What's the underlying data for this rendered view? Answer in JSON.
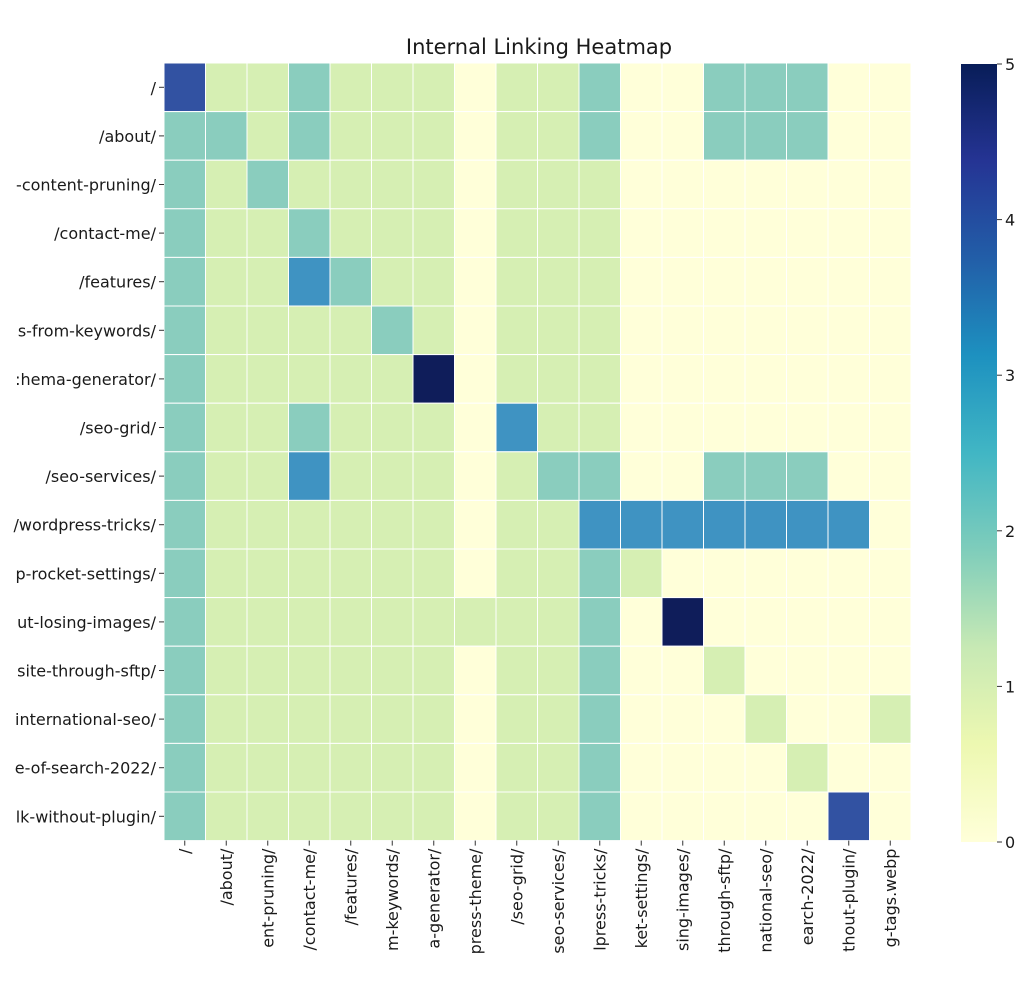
{
  "chart_data": {
    "type": "heatmap",
    "title": "Internal Linking Heatmap",
    "xlabel": "",
    "ylabel": "",
    "row_labels": [
      "/",
      "/about/",
      "-content-pruning/",
      "/contact-me/",
      "/features/",
      "s-from-keywords/",
      ":hema-generator/",
      "/seo-grid/",
      "/seo-services/",
      "/wordpress-tricks/",
      "p-rocket-settings/",
      "ut-losing-images/",
      "site-through-sftp/",
      "international-seo/",
      "e-of-search-2022/",
      "lk-without-plugin/"
    ],
    "col_labels": [
      "/",
      "/about/",
      "ent-pruning/",
      "/contact-me/",
      "/features/",
      "m-keywords/",
      "a-generator/",
      "press-theme/",
      "/seo-grid/",
      "seo-services/",
      "lpress-tricks/",
      "ket-settings/",
      "sing-images/",
      "through-sftp/",
      "national-seo/",
      "earch-2022/",
      "thout-plugin/",
      "g-tags.webp"
    ],
    "values": [
      [
        4,
        1,
        1,
        2,
        1,
        1,
        1,
        0,
        1,
        1,
        2,
        0,
        0,
        2,
        2,
        2,
        0,
        0
      ],
      [
        2,
        2,
        1,
        2,
        1,
        1,
        1,
        0,
        1,
        1,
        2,
        0,
        0,
        2,
        2,
        2,
        0,
        0
      ],
      [
        2,
        1,
        2,
        1,
        1,
        1,
        1,
        0,
        1,
        1,
        1,
        0,
        0,
        0,
        0,
        0,
        0,
        0
      ],
      [
        2,
        1,
        1,
        2,
        1,
        1,
        1,
        0,
        1,
        1,
        1,
        0,
        0,
        0,
        0,
        0,
        0,
        0
      ],
      [
        2,
        1,
        1,
        3,
        2,
        1,
        1,
        0,
        1,
        1,
        1,
        0,
        0,
        0,
        0,
        0,
        0,
        0
      ],
      [
        2,
        1,
        1,
        1,
        1,
        2,
        1,
        0,
        1,
        1,
        1,
        0,
        0,
        0,
        0,
        0,
        0,
        0
      ],
      [
        2,
        1,
        1,
        1,
        1,
        1,
        5,
        0,
        1,
        1,
        1,
        0,
        0,
        0,
        0,
        0,
        0,
        0
      ],
      [
        2,
        1,
        1,
        2,
        1,
        1,
        1,
        0,
        3,
        1,
        1,
        0,
        0,
        0,
        0,
        0,
        0,
        0
      ],
      [
        2,
        1,
        1,
        3,
        1,
        1,
        1,
        0,
        1,
        2,
        2,
        0,
        0,
        2,
        2,
        2,
        0,
        0
      ],
      [
        2,
        1,
        1,
        1,
        1,
        1,
        1,
        0,
        1,
        1,
        3,
        3,
        3,
        3,
        3,
        3,
        3,
        0
      ],
      [
        2,
        1,
        1,
        1,
        1,
        1,
        1,
        0,
        1,
        1,
        2,
        1,
        0,
        0,
        0,
        0,
        0,
        0
      ],
      [
        2,
        1,
        1,
        1,
        1,
        1,
        1,
        1,
        1,
        1,
        2,
        0,
        5,
        0,
        0,
        0,
        0,
        0
      ],
      [
        2,
        1,
        1,
        1,
        1,
        1,
        1,
        0,
        1,
        1,
        2,
        0,
        0,
        1,
        0,
        0,
        0,
        0
      ],
      [
        2,
        1,
        1,
        1,
        1,
        1,
        1,
        0,
        1,
        1,
        2,
        0,
        0,
        0,
        1,
        0,
        0,
        1
      ],
      [
        2,
        1,
        1,
        1,
        1,
        1,
        1,
        0,
        1,
        1,
        2,
        0,
        0,
        0,
        0,
        1,
        0,
        0
      ],
      [
        2,
        1,
        1,
        1,
        1,
        1,
        1,
        0,
        1,
        1,
        2,
        0,
        0,
        0,
        0,
        0,
        4,
        0
      ]
    ],
    "colorbar": {
      "min": 0,
      "max": 5,
      "ticks": [
        "0",
        "1",
        "2",
        "3",
        "4",
        "5"
      ],
      "colormap": "YlGnBu",
      "colors": {
        "0": "#ffffd9",
        "1": "#d6efb3",
        "2": "#8acdbe",
        "3": "#3f93c2",
        "4": "#3252a2",
        "5": "#0f1d5a"
      }
    },
    "cell_border_color": "#ffffff"
  }
}
